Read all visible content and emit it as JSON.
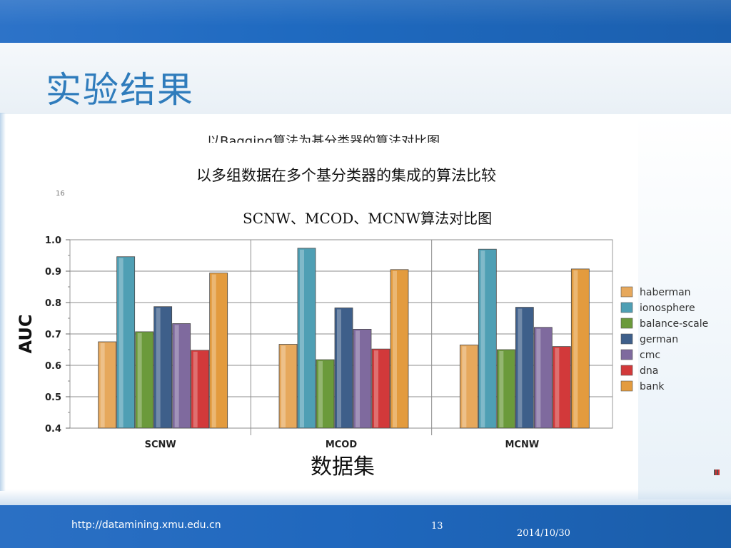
{
  "slide": {
    "title": "实验结果",
    "cut_caption": "以Bagging算法为基分类器的算法对比图",
    "heading": "以多组数据在多个基分类器的集成的算法比较",
    "marker": "16"
  },
  "footer": {
    "url": "http://datamining.xmu.edu.cn",
    "page": "13",
    "date": "2014/10/30"
  },
  "colors": {
    "header_blue": "#2272c4",
    "title_blue": "#2f7cbc"
  },
  "chart_data": {
    "type": "bar",
    "title": "SCNW、MCOD、MCNW算法对比图",
    "xlabel": "数据集",
    "ylabel": "AUC",
    "ylim": [
      0.4,
      1.0
    ],
    "yticks": [
      "0.4",
      "0.5",
      "0.6",
      "0.7",
      "0.8",
      "0.9",
      "1.0"
    ],
    "grid": true,
    "legend_position": "right",
    "categories": [
      "SCNW",
      "MCOD",
      "MCNW"
    ],
    "series": [
      {
        "name": "haberman",
        "color": "#e6a85c",
        "values": [
          0.675,
          0.667,
          0.665
        ]
      },
      {
        "name": "ionosphere",
        "color": "#4f9fb4",
        "values": [
          0.946,
          0.973,
          0.97
        ]
      },
      {
        "name": "balance-scale",
        "color": "#6b9a3b",
        "values": [
          0.707,
          0.618,
          0.65
        ]
      },
      {
        "name": "german",
        "color": "#3e5f8a",
        "values": [
          0.787,
          0.783,
          0.785
        ]
      },
      {
        "name": "cmc",
        "color": "#7f6a9e",
        "values": [
          0.733,
          0.715,
          0.721
        ]
      },
      {
        "name": "dna",
        "color": "#d2393a",
        "values": [
          0.648,
          0.652,
          0.66
        ]
      },
      {
        "name": "bank",
        "color": "#e39b3e",
        "values": [
          0.894,
          0.905,
          0.907
        ]
      }
    ]
  }
}
